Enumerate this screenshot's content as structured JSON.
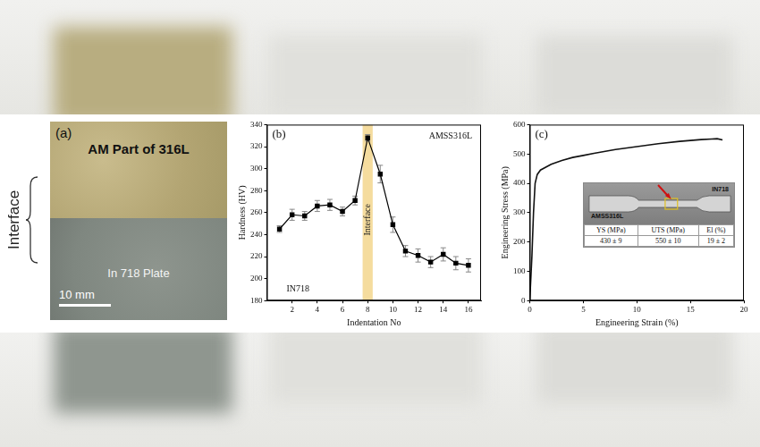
{
  "photo": {
    "panel_label": "(a)",
    "side_label": "Interface",
    "top_label": "AM Part of 316L",
    "bottom_label": "In 718 Plate",
    "scale_bar": "10 mm"
  },
  "chart_data": [
    {
      "type": "line",
      "panel_label": "(b)",
      "x_label": "Indentation No",
      "y_label": "Hardness (HV)",
      "x": [
        1,
        2,
        3,
        4,
        5,
        6,
        7,
        8,
        9,
        10,
        11,
        12,
        13,
        14,
        15,
        16
      ],
      "values": [
        245,
        258,
        257,
        266,
        267,
        261,
        271,
        328,
        295,
        249,
        225,
        221,
        215,
        222,
        214,
        212
      ],
      "errors": [
        3,
        5,
        4,
        5,
        5,
        4,
        4,
        3,
        8,
        7,
        5,
        6,
        5,
        6,
        6,
        6
      ],
      "color": "#000000",
      "marker": "square",
      "xlim": [
        0,
        17
      ],
      "xticks": [
        2,
        4,
        6,
        8,
        10,
        12,
        14,
        16
      ],
      "ylim": [
        180,
        340
      ],
      "yticks": [
        180,
        200,
        220,
        240,
        260,
        280,
        300,
        320,
        340
      ],
      "grid": false,
      "annotations": [
        "AMSS316L",
        "IN718"
      ],
      "band": {
        "range": [
          7.6,
          8.4
        ],
        "label": "Interface",
        "color": "#f5dc9e"
      }
    },
    {
      "type": "line",
      "panel_label": "(c)",
      "x_label": "Engineering Strain (%)",
      "y_label": "Engineering Stress (MPa)",
      "x": [
        0,
        0.2,
        0.35,
        0.5,
        0.7,
        1,
        2,
        3,
        4,
        5,
        6,
        8,
        10,
        12,
        14,
        16,
        17,
        17.5,
        18
      ],
      "values": [
        0,
        150,
        300,
        400,
        430,
        445,
        465,
        478,
        488,
        495,
        502,
        515,
        525,
        535,
        543,
        549,
        551,
        552,
        548
      ],
      "color": "#111111",
      "marker": "none",
      "xlim": [
        0,
        20
      ],
      "xticks": [
        0,
        5,
        10,
        15,
        20
      ],
      "ylim": [
        0,
        600
      ],
      "yticks": [
        0,
        100,
        200,
        300,
        400,
        500,
        600
      ],
      "grid": false,
      "inset": {
        "labels": [
          "AMSS316L",
          "IN718"
        ],
        "table": {
          "header": [
            "YS (MPa)",
            "UTS (MPa)",
            "El (%)"
          ],
          "rows": [
            [
              "430 ± 9",
              "550 ± 10",
              "19 ± 2"
            ]
          ]
        }
      }
    }
  ]
}
